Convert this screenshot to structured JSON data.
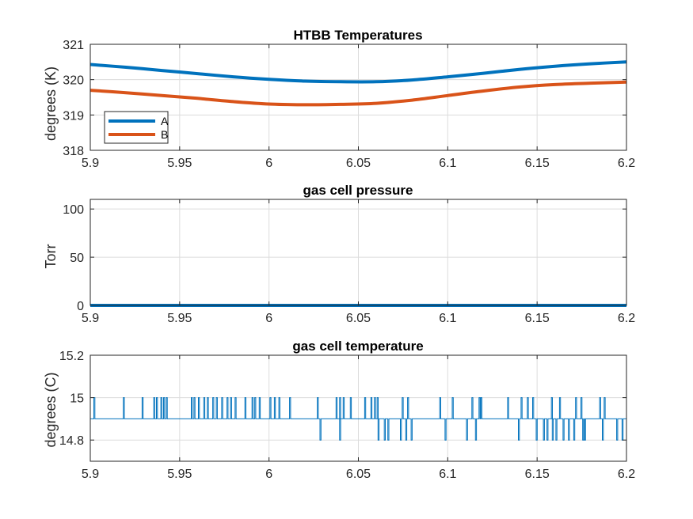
{
  "chart_data": [
    {
      "type": "line",
      "title": "HTBB Temperatures",
      "xlabel": "",
      "ylabel": "degrees (K)",
      "xlim": [
        5.9,
        6.2
      ],
      "ylim": [
        318,
        321
      ],
      "xticks": [
        "5.9",
        "5.95",
        "6",
        "6.05",
        "6.1",
        "6.15",
        "6.2"
      ],
      "yticks": [
        "318",
        "319",
        "320",
        "321"
      ],
      "grid": true,
      "legend": "bottom-left",
      "series": [
        {
          "name": "A",
          "color": "#0072BD",
          "x": [
            5.9,
            5.92,
            5.94,
            5.96,
            5.98,
            6.0,
            6.02,
            6.04,
            6.06,
            6.08,
            6.1,
            6.12,
            6.14,
            6.16,
            6.18,
            6.2
          ],
          "y": [
            320.43,
            320.35,
            320.26,
            320.17,
            320.08,
            320.01,
            319.96,
            319.94,
            319.94,
            319.99,
            320.08,
            320.18,
            320.29,
            320.38,
            320.45,
            320.5
          ]
        },
        {
          "name": "B",
          "color": "#D95319",
          "x": [
            5.9,
            5.92,
            5.94,
            5.96,
            5.98,
            6.0,
            6.02,
            6.04,
            6.06,
            6.08,
            6.1,
            6.12,
            6.14,
            6.16,
            6.18,
            6.2
          ],
          "y": [
            319.7,
            319.63,
            319.55,
            319.47,
            319.38,
            319.31,
            319.29,
            319.3,
            319.33,
            319.42,
            319.55,
            319.68,
            319.79,
            319.86,
            319.9,
            319.93
          ]
        }
      ]
    },
    {
      "type": "line",
      "title": "gas cell pressure",
      "xlabel": "",
      "ylabel": "Torr",
      "xlim": [
        5.9,
        6.2
      ],
      "ylim": [
        0,
        110
      ],
      "xticks": [
        "5.9",
        "5.95",
        "6",
        "6.05",
        "6.1",
        "6.15",
        "6.2"
      ],
      "yticks": [
        "0",
        "50",
        "100"
      ],
      "grid": true,
      "series": [
        {
          "color": "#0072BD",
          "x": [
            5.9,
            6.2
          ],
          "y": [
            0,
            0
          ]
        }
      ]
    },
    {
      "type": "line",
      "title": "gas cell temperature",
      "xlabel": "",
      "ylabel": "degrees (C)",
      "xlim": [
        5.9,
        6.2
      ],
      "ylim": [
        14.7,
        15.2
      ],
      "xticks": [
        "5.9",
        "5.95",
        "6",
        "6.05",
        "6.1",
        "6.15",
        "6.2"
      ],
      "yticks": [
        "14.8",
        "15",
        "15.2"
      ],
      "grid": true,
      "series": [
        {
          "color": "#0072BD",
          "baseline": 14.9,
          "spikes_up": [
            5.902,
            5.9185,
            5.929,
            5.9355,
            5.937,
            5.9395,
            5.941,
            5.9425,
            5.9565,
            5.958,
            5.9605,
            5.9635,
            5.9655,
            5.9685,
            5.9705,
            5.9735,
            5.9765,
            5.9785,
            5.981,
            5.9865,
            5.9905,
            5.992,
            5.9945,
            6.0005,
            6.003,
            6.0055,
            6.0115,
            6.027,
            6.0375,
            6.0395,
            6.0415,
            6.0455,
            6.0535,
            6.057,
            6.059,
            6.0605,
            6.0745,
            6.0775,
            6.0955,
            6.1025,
            6.1135,
            6.1175,
            6.1185,
            6.1335,
            6.141,
            6.1445,
            6.1475,
            6.158,
            6.1625,
            6.1715,
            6.1745,
            6.185,
            6.1875
          ],
          "spikes_down": [
            6.0285,
            6.0395,
            6.061,
            6.0645,
            6.0665,
            6.0735,
            6.0765,
            6.0795,
            6.0985,
            6.1105,
            6.1155,
            6.1395,
            6.1495,
            6.1535,
            6.1555,
            6.1585,
            6.1605,
            6.1645,
            6.1675,
            6.1705,
            6.1755,
            6.1765,
            6.1865,
            6.1945,
            6.1975
          ]
        }
      ]
    }
  ]
}
